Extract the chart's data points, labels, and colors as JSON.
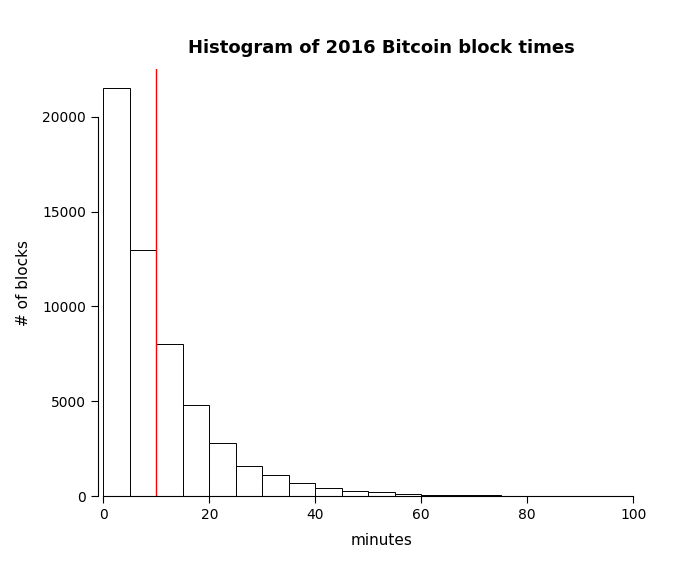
{
  "title": "Histogram of 2016 Bitcoin block times",
  "xlabel": "minutes",
  "ylabel": "# of blocks",
  "bin_edges": [
    0,
    5,
    10,
    15,
    20,
    25,
    30,
    35,
    40,
    45,
    50,
    55,
    60,
    65,
    70,
    75,
    80,
    85,
    90,
    95,
    100
  ],
  "bar_heights": [
    21500,
    13000,
    8000,
    4800,
    2800,
    1600,
    1100,
    700,
    450,
    300,
    200,
    130,
    90,
    60,
    40,
    25,
    15,
    10,
    7,
    4
  ],
  "bar_color": "#ffffff",
  "bar_edge_color": "#000000",
  "vline_x": 10,
  "vline_color": "#ff0000",
  "xlim": [
    -1,
    106
  ],
  "ylim": [
    0,
    22500
  ],
  "yticks": [
    0,
    5000,
    10000,
    15000,
    20000
  ],
  "xticks": [
    0,
    20,
    40,
    60,
    80,
    100
  ],
  "title_fontsize": 13,
  "label_fontsize": 11,
  "tick_fontsize": 10,
  "background_color": "#ffffff",
  "figsize": [
    7.0,
    5.77
  ],
  "dpi": 100
}
